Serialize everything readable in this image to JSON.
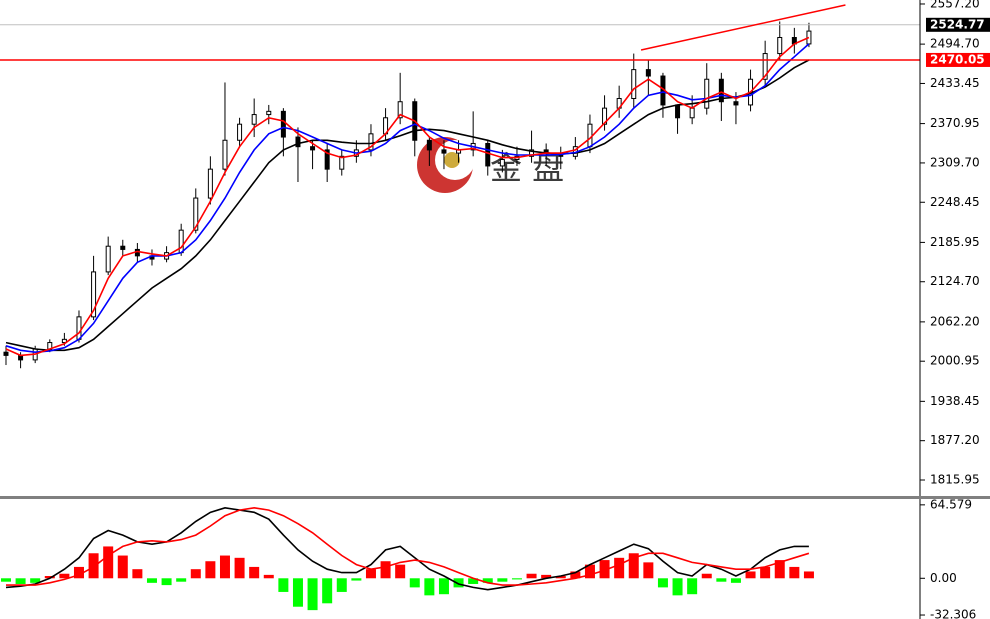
{
  "chart_data": [
    {
      "type": "candlestick",
      "xlim": [
        -0.41,
        62.47
      ],
      "ylim": [
        1789.5,
        2563.4
      ],
      "yticks": [
        {
          "value": 2557.2,
          "label": "2557.20"
        },
        {
          "value": 2494.7,
          "label": "2494.70"
        },
        2433.45,
        2370.95,
        {
          "value": 2309.7,
          "label": "2309.70"
        },
        2248.45,
        2185.95,
        {
          "value": 2124.7,
          "label": "2124.70"
        },
        {
          "value": 2062.2,
          "label": "2062.20"
        },
        2000.95,
        1938.45,
        {
          "value": 1877.2,
          "label": "1877.20"
        },
        1815.95
      ],
      "watermark": "金 盘",
      "up_color": "#ffffff",
      "down_color": "#000000",
      "open": [
        2015,
        2010,
        2003,
        2020,
        2030,
        2035,
        2070,
        2140,
        2180,
        2175,
        2165,
        2160,
        2170,
        2205,
        2255,
        2300,
        2345,
        2370,
        2385,
        2390,
        2350,
        2335,
        2330,
        2300,
        2320,
        2330,
        2355,
        2380,
        2405,
        2345,
        2330,
        2325,
        2330,
        2340,
        2305,
        2315,
        2320,
        2330,
        2325,
        2320,
        2335,
        2370,
        2395,
        2410,
        2455,
        2445,
        2400,
        2380,
        2395,
        2440,
        2405,
        2400,
        2440,
        2480,
        2505,
        2495
      ],
      "high": [
        2025,
        2015,
        2025,
        2035,
        2045,
        2080,
        2165,
        2195,
        2190,
        2185,
        2175,
        2180,
        2215,
        2270,
        2320,
        2435,
        2380,
        2410,
        2400,
        2395,
        2365,
        2345,
        2340,
        2330,
        2345,
        2370,
        2395,
        2450,
        2410,
        2350,
        2345,
        2345,
        2390,
        2345,
        2330,
        2335,
        2360,
        2340,
        2335,
        2350,
        2385,
        2415,
        2430,
        2480,
        2470,
        2450,
        2400,
        2415,
        2465,
        2450,
        2420,
        2455,
        2500,
        2530,
        2520,
        2528
      ],
      "low": [
        1995,
        1990,
        1998,
        2015,
        2025,
        2030,
        2065,
        2135,
        2165,
        2155,
        2150,
        2155,
        2165,
        2200,
        2245,
        2290,
        2335,
        2350,
        2370,
        2320,
        2280,
        2300,
        2280,
        2290,
        2310,
        2320,
        2345,
        2370,
        2320,
        2305,
        2300,
        2310,
        2320,
        2290,
        2295,
        2305,
        2310,
        2305,
        2300,
        2315,
        2325,
        2360,
        2380,
        2395,
        2415,
        2380,
        2355,
        2370,
        2385,
        2375,
        2370,
        2390,
        2430,
        2470,
        2480,
        2490
      ],
      "close": [
        2010,
        2003,
        2020,
        2030,
        2035,
        2070,
        2140,
        2180,
        2175,
        2165,
        2160,
        2170,
        2205,
        2255,
        2300,
        2345,
        2370,
        2385,
        2390,
        2350,
        2335,
        2330,
        2300,
        2320,
        2330,
        2355,
        2380,
        2405,
        2345,
        2330,
        2325,
        2330,
        2340,
        2305,
        2315,
        2320,
        2330,
        2325,
        2320,
        2335,
        2370,
        2395,
        2410,
        2455,
        2445,
        2400,
        2380,
        2395,
        2440,
        2405,
        2400,
        2440,
        2480,
        2505,
        2495,
        2515
      ],
      "lines": [
        {
          "color": "#000000",
          "values": [
            2030,
            2025,
            2020,
            2018,
            2018,
            2022,
            2035,
            2055,
            2075,
            2095,
            2115,
            2130,
            2145,
            2165,
            2190,
            2220,
            2250,
            2280,
            2310,
            2330,
            2340,
            2345,
            2345,
            2342,
            2340,
            2340,
            2345,
            2352,
            2360,
            2362,
            2360,
            2355,
            2350,
            2345,
            2338,
            2332,
            2328,
            2325,
            2324,
            2325,
            2330,
            2340,
            2355,
            2370,
            2385,
            2395,
            2400,
            2402,
            2405,
            2410,
            2412,
            2418,
            2428,
            2442,
            2458,
            2470
          ]
        },
        {
          "color": "#0000ff",
          "values": [
            2025,
            2018,
            2015,
            2017,
            2022,
            2035,
            2060,
            2095,
            2130,
            2155,
            2165,
            2165,
            2170,
            2190,
            2220,
            2255,
            2295,
            2330,
            2355,
            2365,
            2360,
            2350,
            2340,
            2330,
            2325,
            2328,
            2340,
            2360,
            2370,
            2360,
            2348,
            2340,
            2335,
            2330,
            2325,
            2322,
            2322,
            2322,
            2323,
            2326,
            2335,
            2350,
            2370,
            2395,
            2415,
            2420,
            2415,
            2408,
            2410,
            2415,
            2412,
            2415,
            2430,
            2455,
            2475,
            2495
          ]
        },
        {
          "color": "#ff0000",
          "values": [
            2020,
            2010,
            2012,
            2020,
            2028,
            2045,
            2080,
            2130,
            2165,
            2172,
            2168,
            2165,
            2178,
            2210,
            2250,
            2295,
            2335,
            2365,
            2380,
            2375,
            2355,
            2340,
            2325,
            2318,
            2322,
            2335,
            2355,
            2385,
            2375,
            2350,
            2335,
            2330,
            2332,
            2325,
            2318,
            2318,
            2322,
            2325,
            2325,
            2330,
            2348,
            2372,
            2395,
            2425,
            2440,
            2425,
            2405,
            2395,
            2410,
            2420,
            2410,
            2420,
            2445,
            2475,
            2495,
            2505
          ]
        }
      ],
      "price_lines": [
        {
          "value": 2524.77,
          "color": "#000000",
          "line_color": "#c0c0c0"
        },
        {
          "value": 2470.05,
          "color": "#ff0000",
          "line_color": "#ff0000"
        }
      ],
      "trendline": {
        "x": [
          43.5,
          57.5
        ],
        "y": [
          2485.5,
          2555.6
        ],
        "color": "#ff0000"
      }
    },
    {
      "type": "macd",
      "xlim": [
        -0.41,
        62.47
      ],
      "ylim": [
        -35.8,
        70.6
      ],
      "yticks": [
        64.579,
        {
          "value": 0,
          "label": "0.00"
        },
        -32.306
      ],
      "up_color": "#ff0000",
      "down_color": "#00ff00",
      "histogram": [
        -3,
        -5,
        -4,
        2,
        4,
        10,
        22,
        28,
        20,
        8,
        -4,
        -6,
        -3,
        8,
        15,
        20,
        18,
        10,
        3,
        -12,
        -25,
        -28,
        -22,
        -12,
        -2,
        8,
        15,
        12,
        -8,
        -15,
        -14,
        -8,
        -5,
        -4,
        -3,
        -1,
        4,
        3,
        2,
        6,
        12,
        16,
        18,
        22,
        14,
        -8,
        -15,
        -14,
        4,
        -3,
        -4,
        6,
        10,
        16,
        10,
        6
      ],
      "lines": [
        {
          "color": "#000000",
          "values": [
            -8,
            -7,
            -5,
            0,
            8,
            18,
            35,
            42,
            38,
            32,
            30,
            32,
            40,
            50,
            58,
            62,
            60,
            58,
            52,
            38,
            25,
            15,
            8,
            5,
            5,
            12,
            25,
            28,
            18,
            8,
            2,
            -5,
            -8,
            -10,
            -8,
            -6,
            -3,
            0,
            2,
            5,
            12,
            18,
            24,
            30,
            26,
            15,
            5,
            2,
            12,
            8,
            2,
            8,
            18,
            25,
            28,
            28
          ]
        },
        {
          "color": "#ff0000",
          "values": [
            -6,
            -6,
            -6,
            -4,
            -1,
            3,
            10,
            20,
            28,
            32,
            33,
            32,
            34,
            38,
            46,
            55,
            60,
            62,
            60,
            55,
            48,
            40,
            30,
            20,
            12,
            8,
            10,
            14,
            16,
            14,
            10,
            5,
            0,
            -4,
            -6,
            -6,
            -5,
            -4,
            -2,
            0,
            3,
            7,
            12,
            18,
            22,
            22,
            18,
            14,
            12,
            10,
            8,
            8,
            10,
            14,
            18,
            22
          ]
        }
      ]
    }
  ]
}
